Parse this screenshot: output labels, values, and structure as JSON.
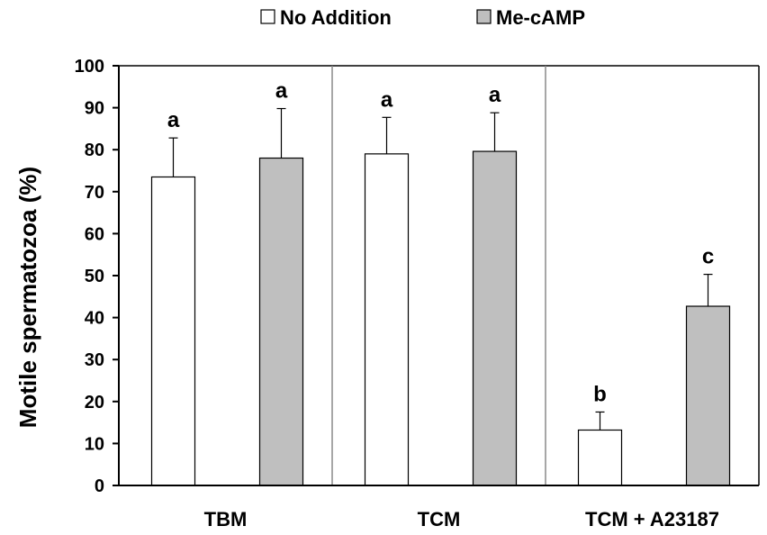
{
  "chart_data": {
    "type": "bar",
    "title": "",
    "xlabel": "",
    "ylabel": "Motile spermatozoa (%)",
    "ylim": [
      0,
      100
    ],
    "yticks": [
      0,
      10,
      20,
      30,
      40,
      50,
      60,
      70,
      80,
      90,
      100
    ],
    "categories": [
      "TBM",
      "TCM",
      "TCM + A23187"
    ],
    "series": [
      {
        "name": "No Addition",
        "color": "#ffffff",
        "values": [
          73.5,
          79,
          13.2
        ],
        "errors": [
          9.3,
          8.7,
          4.3
        ],
        "labels": [
          "a",
          "a",
          "b"
        ]
      },
      {
        "name": "Me-cAMP",
        "color": "#bfbfbf",
        "values": [
          78,
          79.6,
          42.7
        ],
        "errors": [
          11.8,
          9.2,
          7.6
        ],
        "labels": [
          "a",
          "a",
          "c"
        ]
      }
    ],
    "legend_position": "top",
    "grid": false,
    "group_separators": true
  }
}
